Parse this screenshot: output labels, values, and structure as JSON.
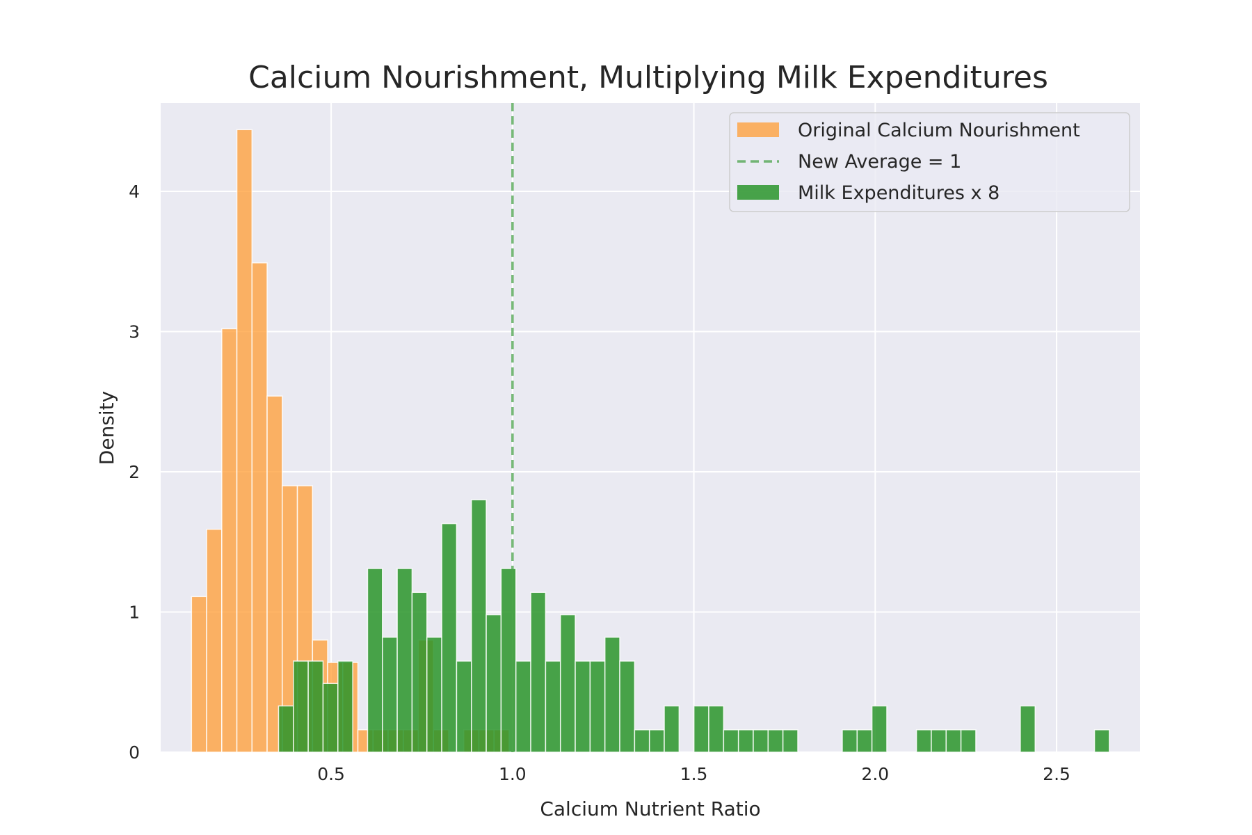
{
  "chart_data": {
    "type": "histogram",
    "title": "Calcium Nourishment, Multiplying Milk Expenditures",
    "xlabel": "Calcium Nutrient Ratio",
    "ylabel": "Density",
    "xlim": [
      0.03,
      2.73
    ],
    "ylim": [
      0,
      4.63
    ],
    "xticks": [
      "0.5",
      "1.0",
      "1.5",
      "2.0",
      "2.5"
    ],
    "xtick_values": [
      0.5,
      1.0,
      1.5,
      2.0,
      2.5
    ],
    "yticks": [
      "0",
      "1",
      "2",
      "3",
      "4"
    ],
    "ytick_values": [
      0,
      1,
      2,
      3,
      4
    ],
    "grid": true,
    "legend_position": "top-right",
    "background_color": "#eaeaf2",
    "vline": {
      "label": "New Average = 1",
      "x": 1.0,
      "color": "#4aa34a",
      "style": "dashed"
    },
    "series": [
      {
        "name": "Original Calcium Nourishment",
        "color": "#ff9c33",
        "bin_start": 0.115,
        "bin_width": 0.0417,
        "values": [
          1.11,
          1.59,
          3.02,
          4.44,
          3.49,
          2.54,
          1.9,
          1.9,
          0.8,
          0.64,
          0.64,
          0.16,
          0.16,
          0.16,
          0.16,
          0.8,
          0.16,
          0,
          0.16,
          0.16,
          0.16
        ]
      },
      {
        "name": "Milk Expenditures x 8",
        "color": "#2a952a",
        "bin_start": 0.355,
        "bin_width": 0.0409,
        "values": [
          0.33,
          0.65,
          0.65,
          0.49,
          0.65,
          0,
          1.31,
          0.82,
          1.31,
          1.14,
          0.82,
          1.63,
          0.65,
          1.8,
          0.98,
          1.31,
          0.65,
          1.14,
          0.65,
          0.98,
          0.65,
          0.65,
          0.82,
          0.65,
          0.16,
          0.16,
          0.33,
          0,
          0.33,
          0.33,
          0.16,
          0.16,
          0.16,
          0.16,
          0.16,
          0,
          0,
          0,
          0.16,
          0.16,
          0.33,
          0,
          0,
          0.16,
          0.16,
          0.16,
          0.16,
          0,
          0,
          0,
          0.33,
          0,
          0,
          0,
          0,
          0.16
        ]
      }
    ]
  }
}
